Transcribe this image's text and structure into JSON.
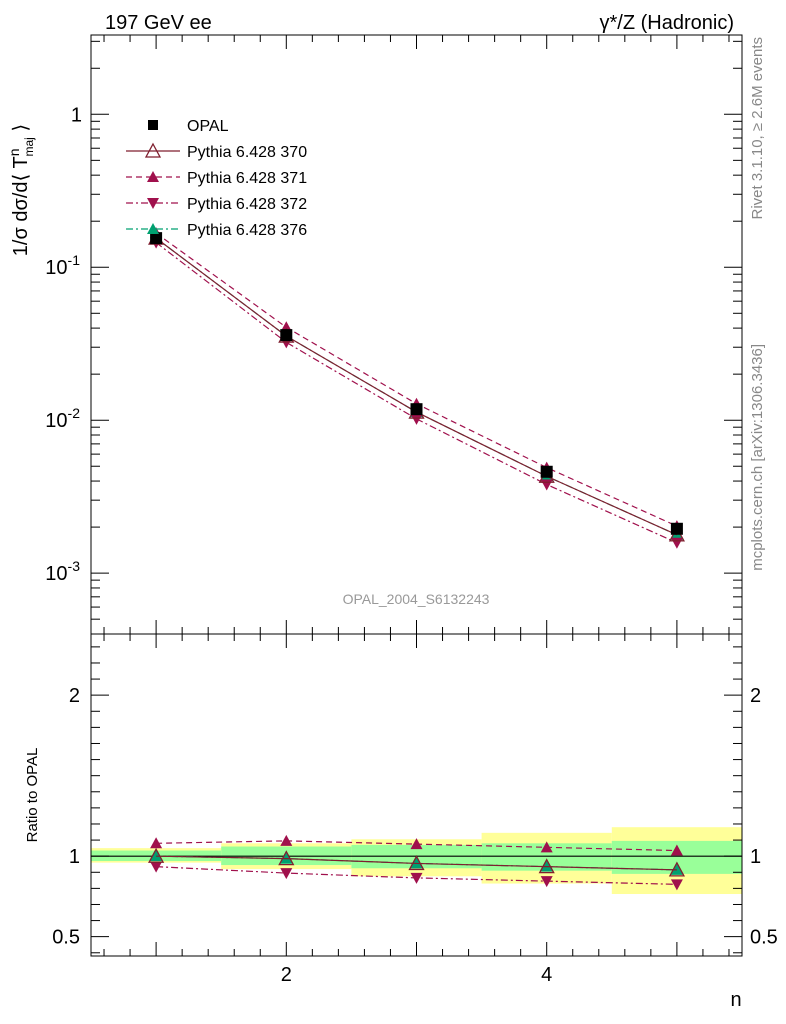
{
  "header": {
    "left": "197 GeV ee",
    "right": "γ*/Z (Hadronic)"
  },
  "side": {
    "rivet": "Rivet 3.1.10, ≥ 2.6M events",
    "mcplots": "mcplots.cern.ch [arXiv:1306.3436]"
  },
  "watermark": "OPAL_2004_S6132243",
  "chart_data": [
    {
      "type": "line",
      "panel": "main",
      "yscale": "log",
      "ylabel": "1/σ dσ/d⟨ T^n_maj ⟩",
      "xlabel": "n",
      "xlim": [
        0.5,
        5.5
      ],
      "ylim": [
        0.0004,
        3.3
      ],
      "y_tick_labels": [
        "10^-3",
        "10^-2",
        "10^-1",
        "1"
      ],
      "x_tick_labels": [
        "2",
        "4"
      ],
      "x": [
        1,
        2,
        3,
        4,
        5
      ],
      "series": [
        {
          "name": "OPAL",
          "color": "#000000",
          "marker": "square",
          "values": [
            0.155,
            0.036,
            0.0118,
            0.0046,
            0.00195
          ]
        },
        {
          "name": "Pythia 6.428 370",
          "color": "#7f1f2f",
          "marker": "open-triangle-up",
          "line": "solid",
          "values": [
            0.155,
            0.0355,
            0.0113,
            0.0043,
            0.00178
          ]
        },
        {
          "name": "Pythia 6.428 371",
          "color": "#a0104c",
          "marker": "triangle-up",
          "line": "dashed",
          "values": [
            0.167,
            0.0405,
            0.0128,
            0.0049,
            0.00203
          ]
        },
        {
          "name": "Pythia 6.428 372",
          "color": "#a0104c",
          "marker": "triangle-down",
          "line": "dashdot",
          "values": [
            0.145,
            0.0323,
            0.0102,
            0.0038,
            0.00158
          ]
        },
        {
          "name": "Pythia 6.428 376",
          "color": "#00a070",
          "marker": "triangle-up",
          "line": "dashdot",
          "values": [
            0.155,
            0.0355,
            0.0113,
            0.0043,
            0.00178
          ]
        }
      ]
    },
    {
      "type": "line",
      "panel": "ratio",
      "ylabel": "Ratio to OPAL",
      "xlabel": "n",
      "ylim": [
        0.38,
        2.38
      ],
      "y_tick_labels": [
        "0.5",
        "1",
        "2"
      ],
      "x": [
        1,
        2,
        3,
        4,
        5
      ],
      "bands": {
        "bins": [
          [
            0.5,
            1.5
          ],
          [
            1.5,
            2.5
          ],
          [
            2.5,
            3.5
          ],
          [
            3.5,
            4.5
          ],
          [
            4.5,
            5.5
          ]
        ],
        "yellow": [
          [
            0.96,
            1.05
          ],
          [
            0.92,
            1.08
          ],
          [
            0.875,
            1.105
          ],
          [
            0.83,
            1.145
          ],
          [
            0.765,
            1.18
          ]
        ],
        "green": [
          [
            0.97,
            1.035
          ],
          [
            0.945,
            1.06
          ],
          [
            0.925,
            1.07
          ],
          [
            0.91,
            1.08
          ],
          [
            0.89,
            1.095
          ]
        ],
        "yellow_color": "#ffff99",
        "green_color": "#99ff99"
      },
      "series": [
        {
          "name": "Pythia 6.428 370",
          "values": [
            1.0,
            0.985,
            0.955,
            0.935,
            0.915
          ]
        },
        {
          "name": "Pythia 6.428 371",
          "values": [
            1.08,
            1.095,
            1.075,
            1.055,
            1.035
          ]
        },
        {
          "name": "Pythia 6.428 372",
          "values": [
            0.935,
            0.895,
            0.865,
            0.845,
            0.825
          ]
        },
        {
          "name": "Pythia 6.428 376",
          "values": [
            1.0,
            0.985,
            0.955,
            0.935,
            0.915
          ]
        }
      ]
    }
  ]
}
